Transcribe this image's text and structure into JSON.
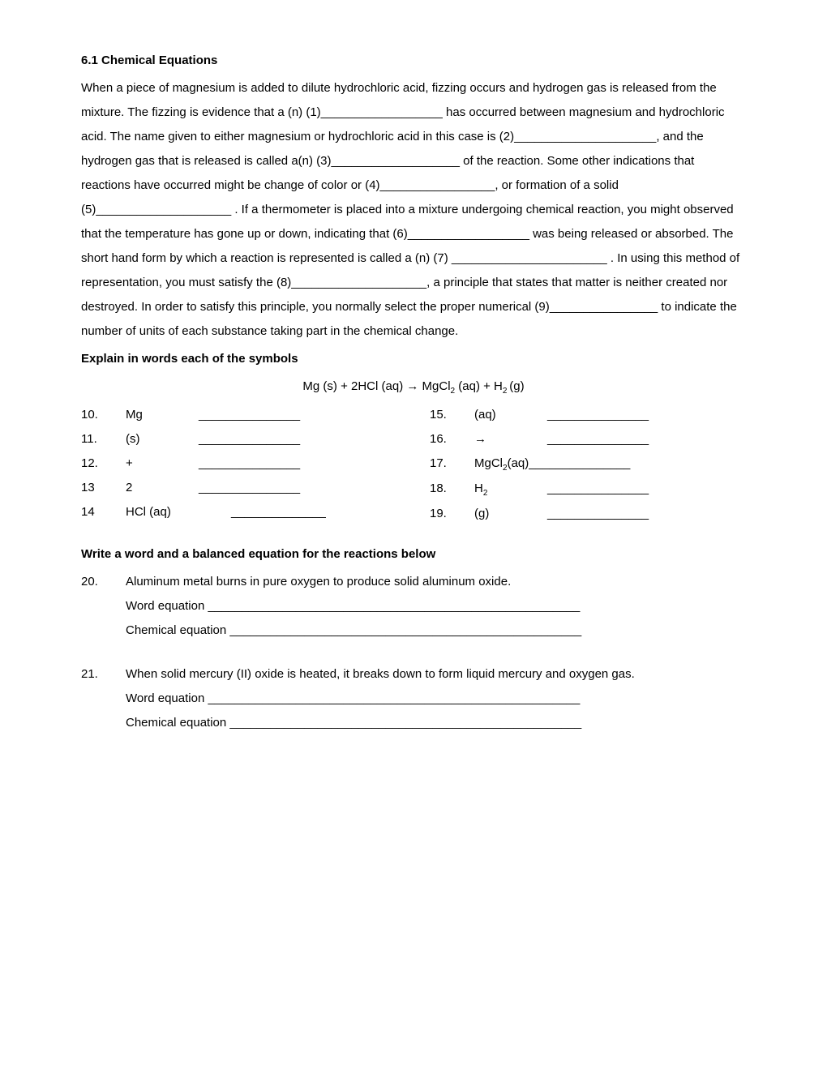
{
  "title": "6.1 Chemical Equations",
  "para": "When a piece of magnesium is added to dilute hydrochloric acid, fizzing occurs and hydrogen gas is released from the mixture. The fizzing is evidence that a (n) (1)__________________ has occurred between magnesium and hydrochloric acid. The name given to either magnesium or hydrochloric acid in this case is (2)_____________________, and the hydrogen gas that is released is called a(n) (3)___________________ of the reaction. Some other indications that reactions have occurred might be change of color or (4)_________________, or formation of a solid (5)____________________ . If a thermometer is placed into a mixture undergoing chemical reaction, you might observed that the temperature has gone up or down, indicating that (6)__________________ was being released or absorbed. The short hand form by which a reaction is represented is called a (n) (7) _______________________ . In using this method of representation, you must satisfy the (8)____________________, a principle that states that matter is neither created nor destroyed. In order to satisfy this principle, you normally select the proper numerical (9)________________ to indicate the number of units of each substance taking part in the chemical change.",
  "subhead1": "Explain in words each of the symbols",
  "equation_parts": {
    "p1": "Mg (s) + 2HCl (aq) ",
    "arrow": "→",
    "p2": " MgCl",
    "sub2": "2",
    "p3": " (aq) + H",
    "subH": "2 ",
    "p4": "(g)"
  },
  "symbols_left": [
    {
      "num": "10.",
      "sym": "Mg",
      "blank": "_______________"
    },
    {
      "num": "11.",
      "sym": "(s)",
      "blank": "_______________"
    },
    {
      "num": "12.",
      "sym": "+",
      "blank": "_______________"
    },
    {
      "num": "13",
      "sym": "2",
      "blank": "_______________"
    },
    {
      "num": "14",
      "sym": "HCl (aq)",
      "blank": "______________"
    }
  ],
  "symbols_right": [
    {
      "num": "15.",
      "sym": "(aq)",
      "blank": "_______________"
    },
    {
      "num": "16.",
      "sym": "→",
      "blank": "_______________"
    },
    {
      "num": "17.",
      "sym_html": "MgCl<span class=\"sub\">2</span>(aq)",
      "blank": " _______________"
    },
    {
      "num": "18.",
      "sym_html": "H<span class=\"sub\">2</span>",
      "blank": "_______________"
    },
    {
      "num": "19.",
      "sym": "(g)",
      "blank": "_______________"
    }
  ],
  "subhead2": "Write a word and a balanced equation for the reactions below",
  "q20": {
    "num": "20.",
    "text": "Aluminum metal burns in pure oxygen to produce solid aluminum oxide.",
    "word": "Word equation _______________________________________________________",
    "chem": "Chemical equation ____________________________________________________"
  },
  "q21": {
    "num": "21.",
    "text": "When solid mercury (II) oxide is heated, it breaks down to form liquid mercury and oxygen gas.",
    "word": "Word equation _______________________________________________________",
    "chem": "Chemical equation ____________________________________________________"
  }
}
